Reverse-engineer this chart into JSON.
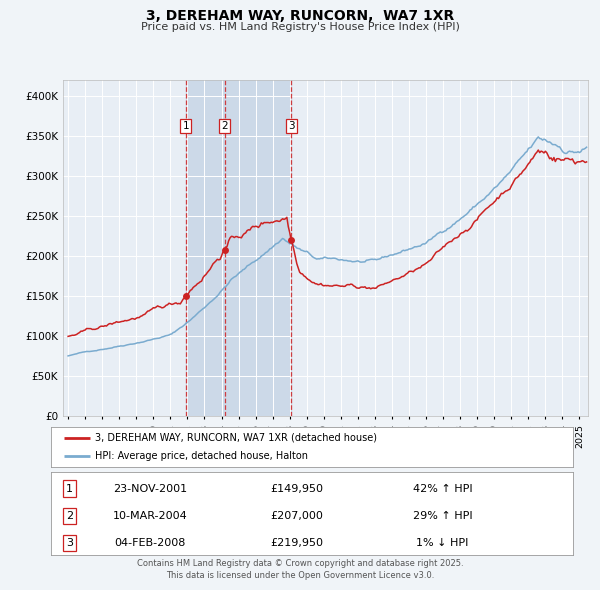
{
  "title": "3, DEREHAM WAY, RUNCORN,  WA7 1XR",
  "subtitle": "Price paid vs. HM Land Registry's House Price Index (HPI)",
  "legend_red": "3, DEREHAM WAY, RUNCORN, WA7 1XR (detached house)",
  "legend_blue": "HPI: Average price, detached house, Halton",
  "transactions": [
    {
      "num": 1,
      "date": "23-NOV-2001",
      "year": 2001.896,
      "price": 149950,
      "pct": "42%",
      "dir": "↑"
    },
    {
      "num": 2,
      "date": "10-MAR-2004",
      "year": 2004.192,
      "price": 207000,
      "pct": "29%",
      "dir": "↑"
    },
    {
      "num": 3,
      "date": "04-FEB-2008",
      "year": 2008.096,
      "price": 219950,
      "pct": "1%",
      "dir": "↓"
    }
  ],
  "footer1": "Contains HM Land Registry data © Crown copyright and database right 2025.",
  "footer2": "This data is licensed under the Open Government Licence v3.0.",
  "bg_color": "#f0f4f8",
  "plot_bg": "#e8eef5",
  "span_bg": "#ccd9e8",
  "red": "#cc2222",
  "blue": "#7aabcf",
  "grid": "#ffffff",
  "ylim": [
    0,
    420000
  ],
  "xlim_start": 1994.7,
  "xlim_end": 2025.5,
  "yticks": [
    0,
    50000,
    100000,
    150000,
    200000,
    250000,
    300000,
    350000,
    400000
  ],
  "ylabels": [
    "£0",
    "£50K",
    "£100K",
    "£150K",
    "£200K",
    "£250K",
    "£300K",
    "£350K",
    "£400K"
  ]
}
